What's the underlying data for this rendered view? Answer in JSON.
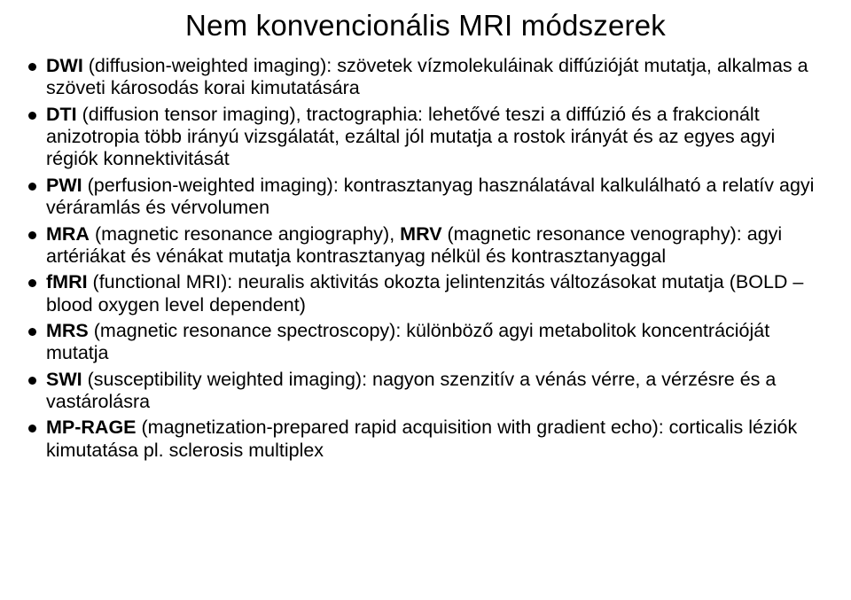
{
  "title": "Nem konvencionális MRI módszerek",
  "items": [
    {
      "lead": "DWI",
      "rest": " (diffusion-weighted imaging): szövetek vízmolekuláinak diffúzióját mutatja, alkalmas a szöveti károsodás korai kimutatására"
    },
    {
      "lead": "DTI",
      "rest": " (diffusion tensor imaging), tractographia: lehetővé teszi a diffúzió és a frakcionált anizotropia több irányú vizsgálatát, ezáltal jól mutatja a rostok irányát és az egyes agyi régiók konnektivitását"
    },
    {
      "lead": "PWI",
      "rest": " (perfusion-weighted imaging): kontrasztanyag használatával kalkulálható a relatív agyi véráramlás és vérvolumen"
    },
    {
      "lead": "MRA",
      "mid1": " (magnetic resonance angiography), ",
      "lead2": "MRV",
      "rest": " (magnetic resonance venography): agyi artériákat és vénákat mutatja kontrasztanyag nélkül és kontrasztanyaggal"
    },
    {
      "lead": "fMRI",
      "rest": " (functional MRI): neuralis aktivitás okozta jelintenzitás változásokat mutatja (BOLD – blood oxygen level dependent)"
    },
    {
      "lead": "MRS",
      "rest": " (magnetic resonance spectroscopy): különböző agyi metabolitok koncentrációját mutatja"
    },
    {
      "lead": "SWI",
      "rest": " (susceptibility weighted imaging): nagyon szenzitív a vénás vérre, a vérzésre és a vastárolásra"
    },
    {
      "lead": "MP-RAGE",
      "rest": " (magnetization-prepared rapid acquisition with gradient echo): corticalis léziók kimutatása pl. sclerosis multiplex"
    }
  ]
}
